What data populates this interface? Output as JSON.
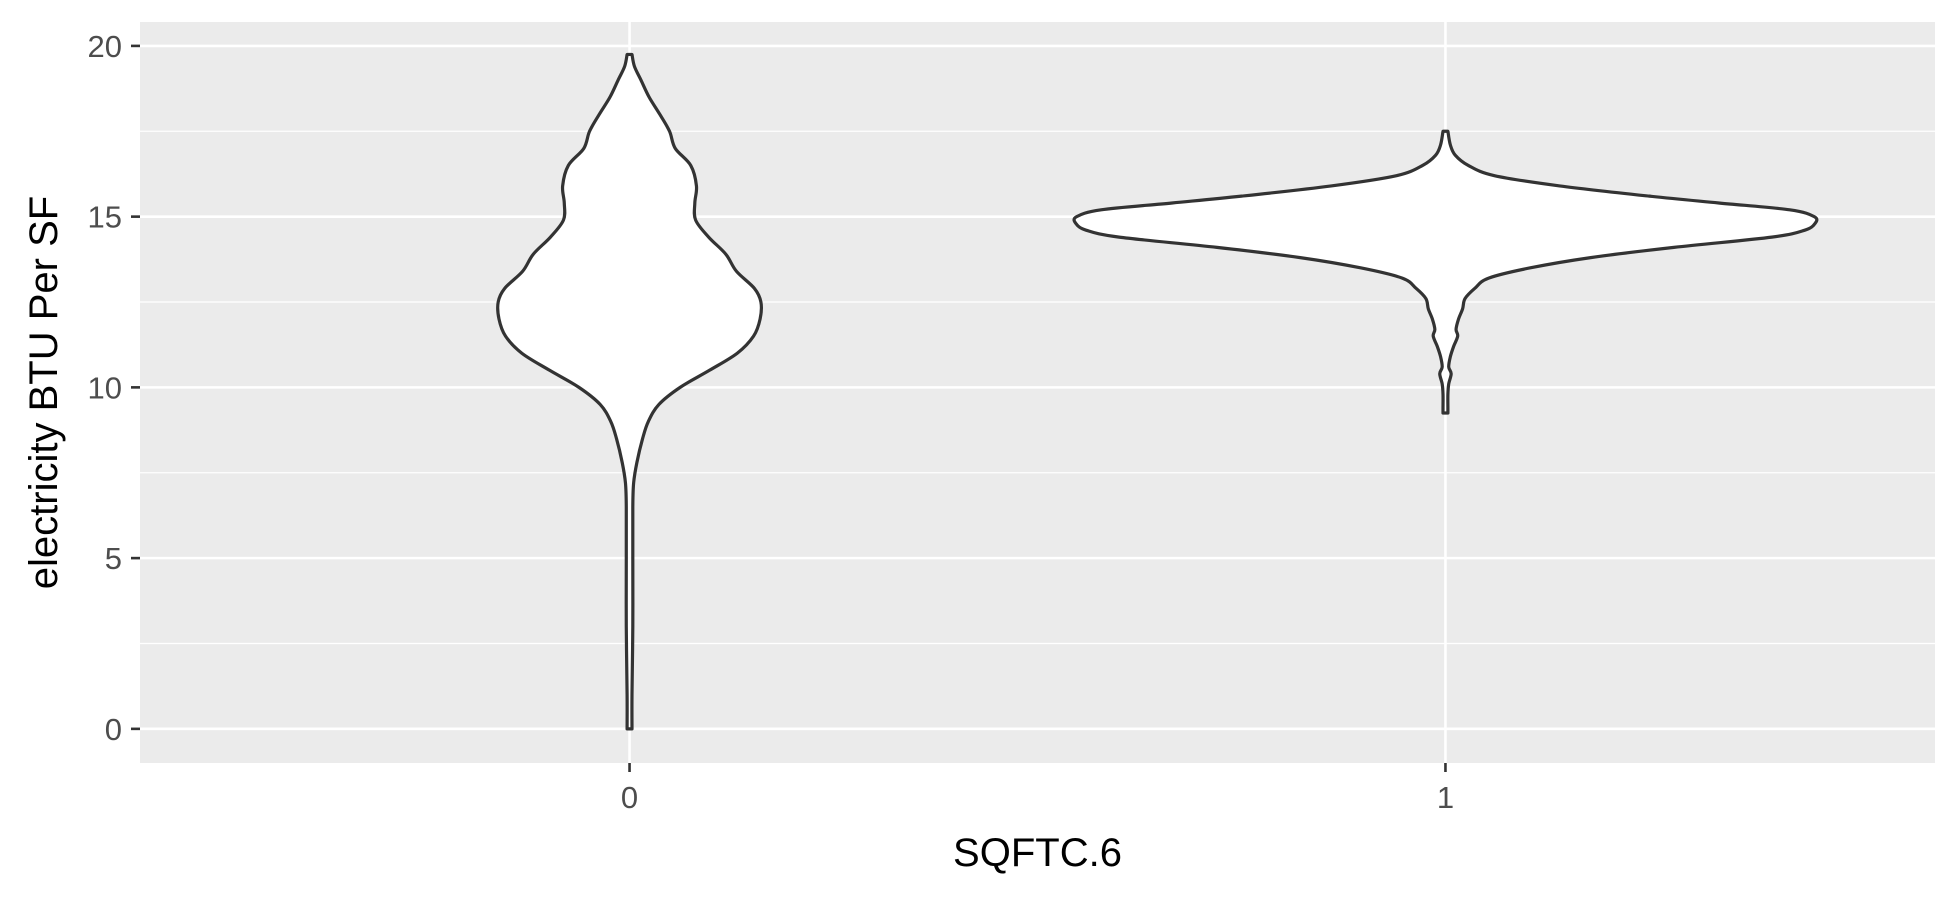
{
  "chart_data": {
    "type": "violin",
    "title": "",
    "xlabel": "SQFTC.6",
    "ylabel": "electricity BTU Per SF",
    "categories": [
      "0",
      "1"
    ],
    "ylim": [
      -1,
      20.7
    ],
    "y_ticks": [
      0,
      5,
      10,
      15,
      20
    ],
    "grid": true,
    "legend": "none",
    "colors": {
      "panel": "#EBEBEB",
      "grid": "#FFFFFF",
      "fill": "#FFFFFF",
      "outline": "#333333"
    },
    "violins": [
      {
        "category": "0",
        "max_halfwidth": 0.161,
        "profile": [
          [
            0.0,
            0.003
          ],
          [
            1.0,
            0.003
          ],
          [
            3.0,
            0.004
          ],
          [
            5.0,
            0.004
          ],
          [
            6.5,
            0.004
          ],
          [
            7.2,
            0.005
          ],
          [
            7.8,
            0.009
          ],
          [
            8.5,
            0.016
          ],
          [
            9.0,
            0.023
          ],
          [
            9.5,
            0.036
          ],
          [
            10.0,
            0.062
          ],
          [
            10.5,
            0.098
          ],
          [
            11.0,
            0.132
          ],
          [
            11.5,
            0.152
          ],
          [
            12.0,
            0.16
          ],
          [
            12.5,
            0.161
          ],
          [
            12.9,
            0.153
          ],
          [
            13.4,
            0.131
          ],
          [
            13.9,
            0.118
          ],
          [
            14.4,
            0.097
          ],
          [
            14.9,
            0.081
          ],
          [
            15.4,
            0.08
          ],
          [
            15.9,
            0.082
          ],
          [
            16.5,
            0.075
          ],
          [
            17.0,
            0.056
          ],
          [
            17.5,
            0.049
          ],
          [
            18.0,
            0.037
          ],
          [
            18.5,
            0.024
          ],
          [
            19.0,
            0.014
          ],
          [
            19.4,
            0.006
          ],
          [
            19.75,
            0.003
          ]
        ]
      },
      {
        "category": "1",
        "max_halfwidth": 0.453,
        "profile": [
          [
            9.25,
            0.003
          ],
          [
            9.4,
            0.003
          ],
          [
            9.8,
            0.003
          ],
          [
            10.1,
            0.004
          ],
          [
            10.4,
            0.007
          ],
          [
            10.6,
            0.004
          ],
          [
            10.9,
            0.006
          ],
          [
            11.2,
            0.01
          ],
          [
            11.5,
            0.015
          ],
          [
            11.7,
            0.013
          ],
          [
            12.0,
            0.016
          ],
          [
            12.3,
            0.021
          ],
          [
            12.6,
            0.024
          ],
          [
            12.9,
            0.036
          ],
          [
            13.2,
            0.053
          ],
          [
            13.5,
            0.104
          ],
          [
            13.8,
            0.178
          ],
          [
            14.1,
            0.28
          ],
          [
            14.4,
            0.4
          ],
          [
            14.6,
            0.44
          ],
          [
            14.8,
            0.453
          ],
          [
            15.0,
            0.452
          ],
          [
            15.2,
            0.422
          ],
          [
            15.4,
            0.335
          ],
          [
            15.6,
            0.25
          ],
          [
            15.9,
            0.14
          ],
          [
            16.2,
            0.06
          ],
          [
            16.5,
            0.028
          ],
          [
            16.8,
            0.012
          ],
          [
            17.1,
            0.006
          ],
          [
            17.5,
            0.003
          ]
        ]
      }
    ]
  }
}
